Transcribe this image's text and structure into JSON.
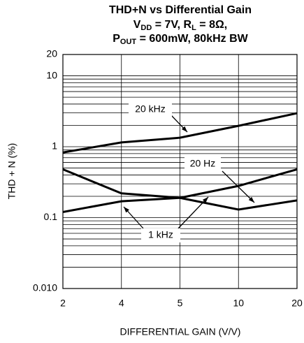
{
  "chart_data": {
    "type": "line",
    "title": "THD+N vs Differential Gain",
    "subtitle_parts": [
      "V",
      "DD",
      " = 7V, R",
      "L",
      " = 8Ω,"
    ],
    "subtitle2_parts": [
      "P",
      "OUT",
      " = 600mW, 80kHz BW"
    ],
    "x_label": "DIFFERENTIAL GAIN (V/V)",
    "y_label": "THD + N (%)",
    "categories": [
      "2",
      "4",
      "5",
      "10",
      "20"
    ],
    "series": [
      {
        "name": "20 kHz",
        "color": "#000000",
        "values": [
          0.83,
          1.15,
          1.34,
          1.97,
          2.97
        ]
      },
      {
        "name": "20 Hz",
        "color": "#000000",
        "values": [
          0.48,
          0.22,
          0.19,
          0.13,
          0.175
        ]
      },
      {
        "name": "1 kHz",
        "color": "#000000",
        "values": [
          0.12,
          0.17,
          0.19,
          0.28,
          0.48
        ]
      }
    ],
    "log_y": true,
    "ylim": [
      0.01,
      20
    ],
    "yticks": [
      20,
      10,
      1,
      0.1,
      {
        "value": 0.01,
        "label": "0.010"
      }
    ],
    "minor_yticks": [
      0.02,
      0.03,
      0.04,
      0.05,
      0.06,
      0.07,
      0.08,
      0.09,
      0.2,
      0.3,
      0.4,
      0.5,
      0.6,
      0.7,
      0.8,
      0.9,
      2,
      3,
      4,
      5,
      6,
      7,
      8,
      9
    ],
    "grid": true
  }
}
